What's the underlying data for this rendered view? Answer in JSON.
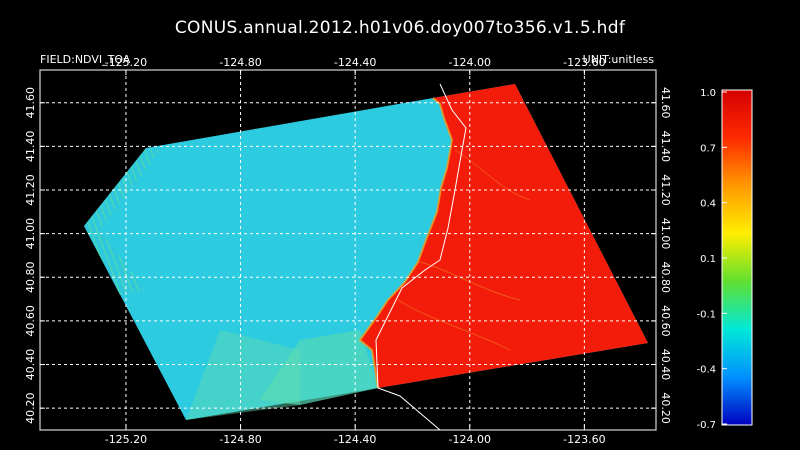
{
  "title": "CONUS.annual.2012.h01v06.doy007to356.v1.5.hdf",
  "field_label": "FIELD:NDVI_TOA",
  "unit_label": "UNIT:unitless",
  "map": {
    "lon_ticks": [
      "-125.20",
      "-124.80",
      "-124.40",
      "-124.00",
      "-123.60"
    ],
    "lat_ticks": [
      "41.60",
      "41.40",
      "41.20",
      "41.00",
      "40.80",
      "40.60",
      "40.40",
      "40.20"
    ],
    "grid": true,
    "lon_values": [
      -125.2,
      -124.8,
      -124.4,
      -124.0,
      -123.6
    ],
    "lat_values": [
      41.6,
      41.4,
      41.2,
      41.0,
      40.8,
      40.6,
      40.4,
      40.2
    ],
    "lon_range": [
      -125.5,
      -123.35
    ],
    "lat_range": [
      40.1,
      41.75
    ]
  },
  "colorbar": {
    "labels": [
      "1.0",
      "0.7",
      "0.4",
      "0.1",
      "-0.1",
      "-0.4",
      "-0.7"
    ],
    "colors": [
      "#d40000",
      "#ff2a00",
      "#ff9900",
      "#ffee00",
      "#60e030",
      "#00e8d8",
      "#0090ff",
      "#0000c0"
    ]
  },
  "colors": {
    "ocean": "#2ecce0",
    "land": "#f21c0a",
    "border": "#ffffff"
  }
}
